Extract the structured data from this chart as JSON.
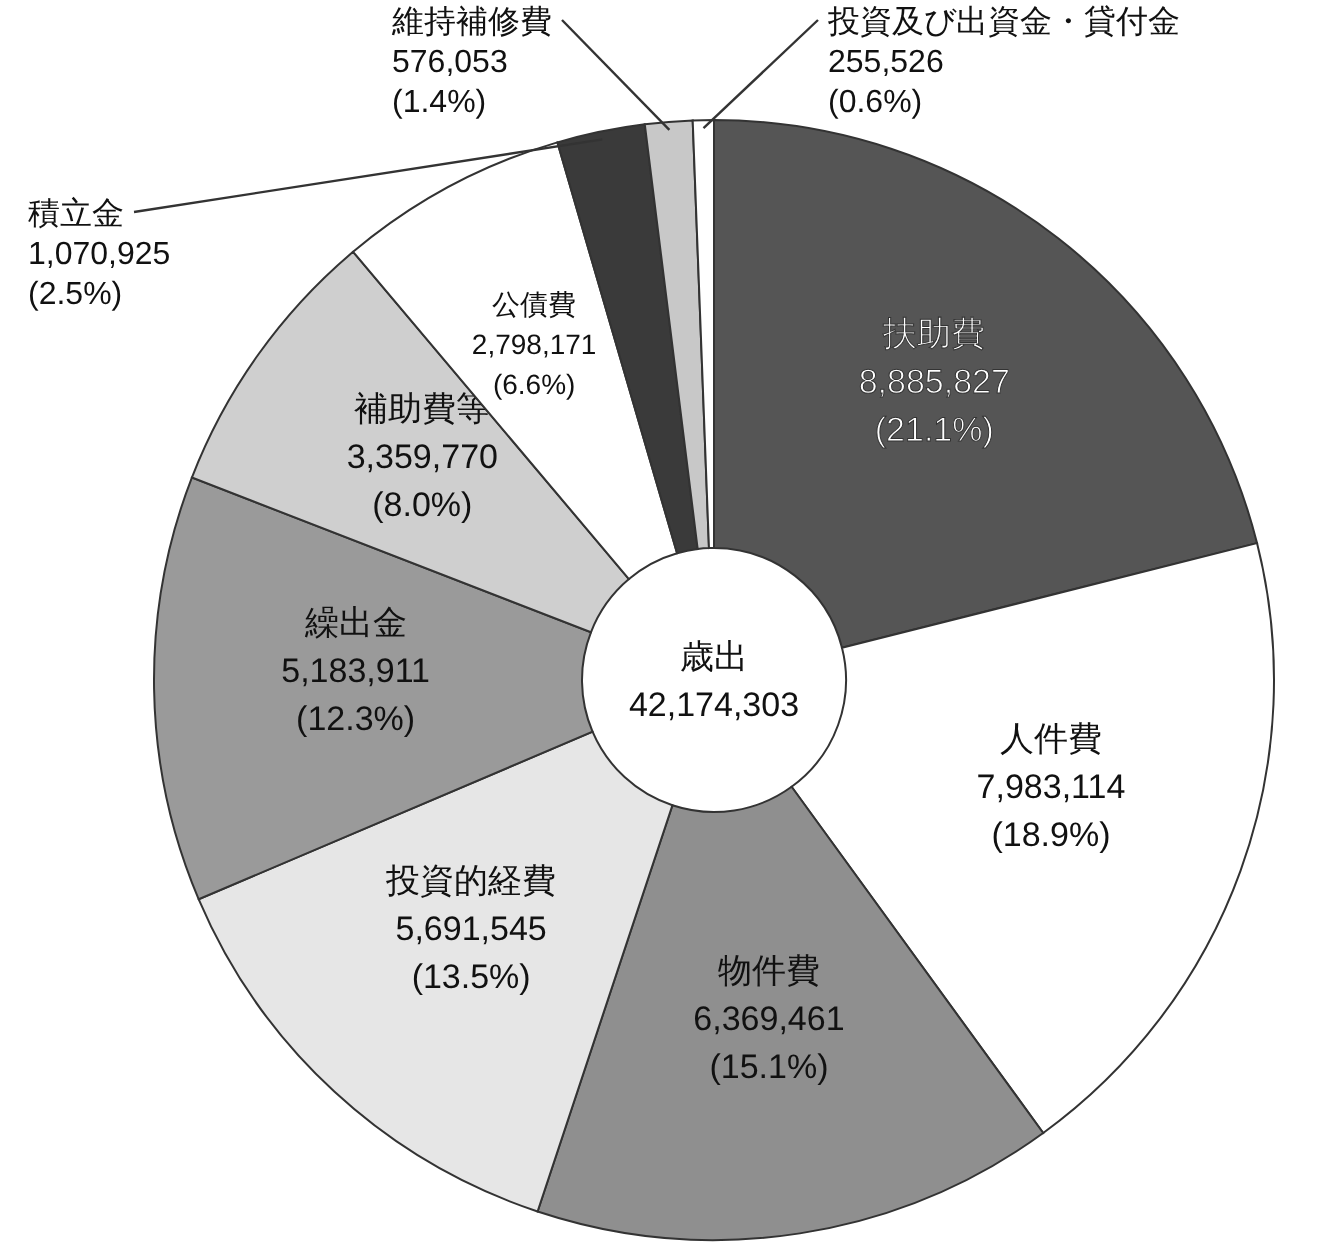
{
  "chart_data": {
    "type": "donut",
    "categories": [
      "扶助費",
      "人件費",
      "物件費",
      "投資的経費",
      "繰出金",
      "補助費等",
      "公債費",
      "積立金",
      "維持補修費",
      "投資及び出資金・貸付金"
    ],
    "values": [
      8885827,
      7983114,
      6369461,
      5691545,
      5183911,
      3359770,
      2798171,
      1070925,
      576053,
      255526
    ],
    "colors": [
      "#555555",
      "#ffffff",
      "#8f8f8f",
      "#e6e6e6",
      "#9a9a9a",
      "#cfcfcf",
      "#ffffff",
      "#3a3a3a",
      "#c8c8c8",
      "#ffffff"
    ],
    "value_labels": [
      "8,885,827\n(21.1%)",
      "7,983,114\n(18.9%)",
      "6,369,461\n(15.1%)",
      "5,691,545\n(13.5%)",
      "5,183,911\n(12.3%)",
      "3,359,770\n(8.0%)",
      "2,798,171\n(6.6%)",
      "1,070,925\n(2.5%)",
      "576,053\n(1.4%)",
      "255,526\n(0.6%)"
    ],
    "annotations": [
      "歳出",
      "42,174,303"
    ]
  }
}
